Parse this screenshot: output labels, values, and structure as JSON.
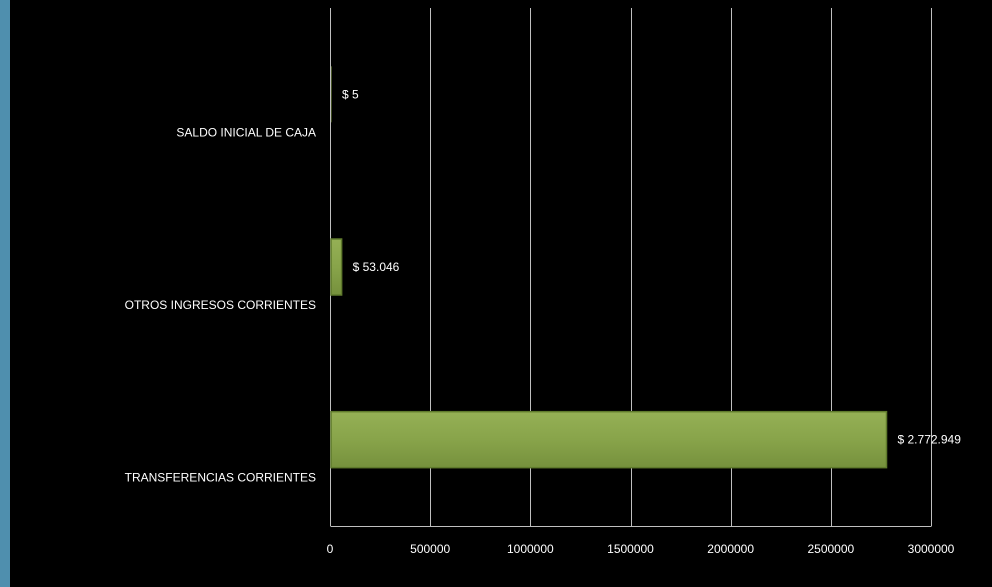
{
  "chart_data": {
    "type": "bar",
    "orientation": "horizontal",
    "categories": [
      "SALDO INICIAL DE CAJA",
      "OTROS INGRESOS CORRIENTES",
      "TRANSFERENCIAS CORRIENTES"
    ],
    "values": [
      5,
      53046,
      2772949
    ],
    "data_labels": [
      "$ 5",
      "$ 53.046",
      "$ 2.772.949"
    ],
    "xlim": [
      0,
      3000000
    ],
    "x_ticks": [
      0,
      500000,
      1000000,
      1500000,
      2000000,
      2500000,
      3000000
    ],
    "x_tick_labels": [
      "0",
      "500000",
      "1000000",
      "1500000",
      "2000000",
      "2500000",
      "3000000"
    ],
    "grid": "vertical",
    "legend": "none",
    "title": "",
    "xlabel": "",
    "ylabel": "",
    "colors": {
      "bar_fill": "#8aa64b",
      "bar_edge": "#5f7a2c",
      "background": "#000000",
      "grid": "#bfbfbf",
      "text": "#ffffff",
      "left_strip": "#4f8fae"
    }
  }
}
